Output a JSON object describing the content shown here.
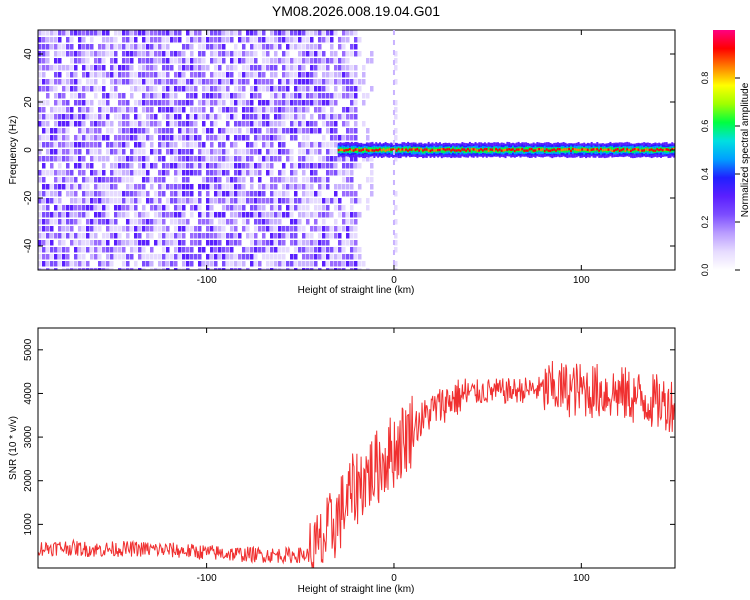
{
  "title": "YM08.2026.008.19.04.G01",
  "colors": {
    "snr_line": "#f03030",
    "colormap": [
      "#ffffff",
      "#e6dbff",
      "#b99cff",
      "#7c4dff",
      "#5a1fff",
      "#2020ff",
      "#00a0ff",
      "#00e0e0",
      "#00ff40",
      "#a0ff00",
      "#ffff00",
      "#ff8000",
      "#ff0000",
      "#ff0080"
    ]
  },
  "chart_data": [
    {
      "type": "heatmap",
      "name": "spectrogram",
      "xlabel": "Height of straight line (km)",
      "ylabel": "Frequency (Hz)",
      "xlim": [
        -190,
        150
      ],
      "ylim": [
        -50,
        50
      ],
      "xticks": [
        -100,
        0,
        100
      ],
      "yticks": [
        -40,
        -20,
        0,
        20,
        40
      ],
      "dashed_reference_x": 0,
      "band_center_hz": 0,
      "colorbar": {
        "label": "Normalized spectral amplitude",
        "range": [
          0,
          1
        ],
        "ticks": [
          "0.0",
          "0.2",
          "0.4",
          "0.6",
          "0.8"
        ]
      }
    },
    {
      "type": "line",
      "name": "snr",
      "xlabel": "Height of straight line (km)",
      "ylabel": "SNR (10 * v/v)",
      "xlim": [
        -190,
        150
      ],
      "ylim": [
        0,
        5500
      ],
      "xticks": [
        -100,
        0,
        100
      ],
      "yticks": [
        1000,
        2000,
        3000,
        4000,
        5000
      ],
      "series": [
        {
          "name": "SNR",
          "x": [
            -190,
            -175,
            -160,
            -145,
            -130,
            -115,
            -100,
            -85,
            -70,
            -55,
            -45,
            -40,
            -35,
            -30,
            -25,
            -20,
            -15,
            -10,
            -5,
            0,
            5,
            10,
            20,
            30,
            40,
            50,
            60,
            70,
            80,
            90,
            100,
            110,
            120,
            130,
            140,
            150
          ],
          "y": [
            450,
            470,
            420,
            440,
            430,
            400,
            360,
            320,
            300,
            290,
            310,
            450,
            800,
            1150,
            1550,
            1850,
            2100,
            2250,
            2500,
            2700,
            2950,
            3200,
            3600,
            3850,
            4000,
            4050,
            4050,
            4080,
            4100,
            4100,
            4080,
            4050,
            4000,
            3900,
            3800,
            3750
          ]
        }
      ]
    }
  ]
}
